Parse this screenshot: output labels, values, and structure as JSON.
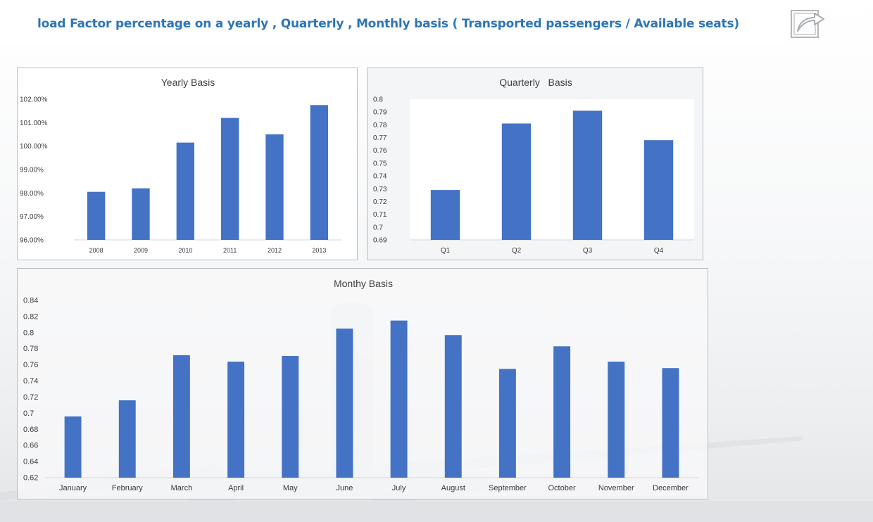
{
  "header": {
    "title": "load Factor percentage on a yearly , Quarterly , Monthly basis ( Transported passengers / Available seats)"
  },
  "icons": {
    "share": "share-arrow-icon"
  },
  "colors": {
    "bar": "#4472c4",
    "title": "#2e75b6",
    "axis_text": "#3a3a3a"
  },
  "chart_data": [
    {
      "id": "yearly",
      "type": "bar",
      "title": "Yearly Basis",
      "categories": [
        "2008",
        "2009",
        "2010",
        "2011",
        "2012",
        "2013"
      ],
      "values": [
        98.05,
        98.2,
        100.15,
        101.2,
        100.5,
        101.75
      ],
      "ylim": [
        96,
        102
      ],
      "yticks": [
        "96.00%",
        "97.00%",
        "98.00%",
        "99.00%",
        "100.00%",
        "101.00%",
        "102.00%"
      ],
      "grid": false,
      "legend": "none"
    },
    {
      "id": "quarter",
      "type": "bar",
      "title": "Quarterly   Basis",
      "categories": [
        "Q1",
        "Q2",
        "Q3",
        "Q4"
      ],
      "values": [
        0.729,
        0.781,
        0.791,
        0.768
      ],
      "ylim": [
        0.69,
        0.8
      ],
      "yticks": [
        "0.69",
        "0.7",
        "0.71",
        "0.72",
        "0.73",
        "0.74",
        "0.75",
        "0.76",
        "0.77",
        "0.78",
        "0.79",
        "0.8"
      ],
      "grid": false,
      "legend": "none"
    },
    {
      "id": "monthly",
      "type": "bar",
      "title": "Monthy Basis",
      "categories": [
        "January",
        "February",
        "March",
        "April",
        "May",
        "June",
        "July",
        "August",
        "September",
        "October",
        "November",
        "December"
      ],
      "values": [
        0.696,
        0.716,
        0.772,
        0.764,
        0.771,
        0.805,
        0.815,
        0.797,
        0.755,
        0.783,
        0.764,
        0.756
      ],
      "ylim": [
        0.62,
        0.84
      ],
      "yticks": [
        "0.62",
        "0.64",
        "0.66",
        "0.68",
        "0.7",
        "0.72",
        "0.74",
        "0.76",
        "0.78",
        "0.8",
        "0.82",
        "0.84"
      ],
      "grid": false,
      "legend": "none"
    }
  ]
}
